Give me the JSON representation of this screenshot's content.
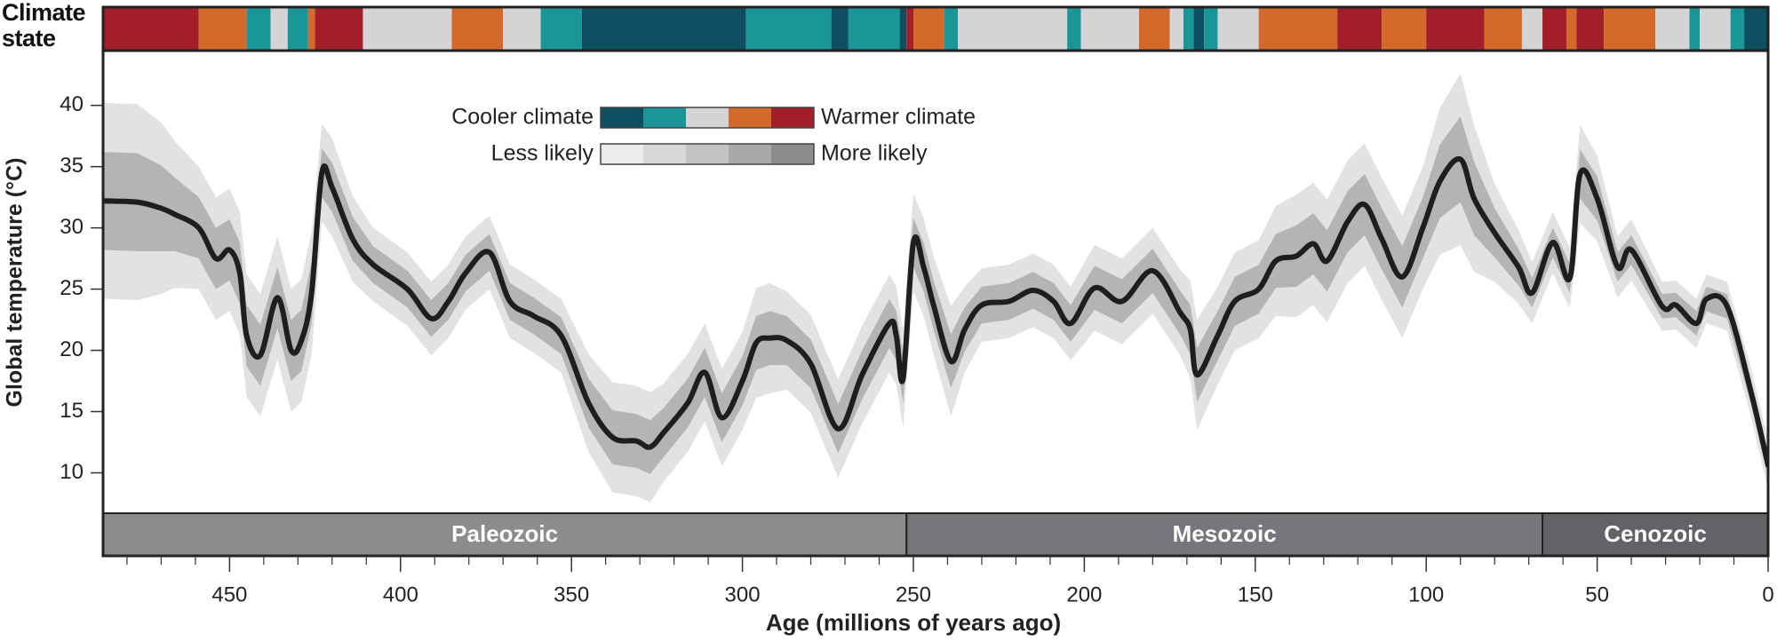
{
  "chart_data": {
    "type": "line",
    "ylabel": "Global temperature (°C)",
    "xlabel": "Age (millions of years ago)",
    "xlim": [
      487,
      0
    ],
    "ylim": [
      6.7,
      44.4
    ],
    "xticks": [
      450,
      400,
      350,
      300,
      250,
      200,
      150,
      100,
      50,
      0
    ],
    "xminorticks": [
      480,
      470,
      460,
      440,
      430,
      420,
      410,
      390,
      380,
      370,
      360,
      340,
      330,
      320,
      310,
      290,
      280,
      270,
      260,
      240,
      230,
      220,
      210,
      190,
      180,
      170,
      160,
      140,
      130,
      120,
      110,
      90,
      80,
      70,
      60,
      40,
      30,
      20,
      10
    ],
    "yticks": [
      10,
      15,
      20,
      25,
      30,
      35,
      40
    ],
    "x": [
      487,
      477,
      470,
      466,
      459,
      454,
      450,
      447,
      445,
      441,
      436,
      432,
      429,
      426,
      423,
      420,
      414,
      408,
      398,
      391,
      386,
      381,
      374,
      368,
      361,
      353,
      345,
      338,
      331,
      327,
      323,
      316,
      311,
      306,
      300,
      296,
      292,
      287,
      280,
      272,
      265,
      257,
      255,
      253,
      250,
      247,
      244,
      239,
      235,
      230,
      222,
      215,
      209,
      204,
      197,
      189,
      180,
      172,
      169,
      167,
      161,
      156,
      149,
      144,
      138,
      133,
      129,
      123,
      118,
      113,
      107,
      101,
      96,
      90,
      86,
      80,
      73,
      69,
      63,
      58,
      55,
      50,
      44,
      40,
      31,
      27,
      21,
      18,
      12,
      5,
      0
    ],
    "series": [
      {
        "color": "#1e1e1e",
        "values": [
          32.2,
          32.1,
          31.6,
          31.1,
          30,
          27.5,
          28.2,
          26.3,
          21.2,
          19.6,
          24.3,
          20,
          20.8,
          24.7,
          34.5,
          33.3,
          29.1,
          27,
          25,
          22.6,
          24,
          26.3,
          28,
          24,
          22.8,
          21.2,
          15.7,
          12.9,
          12.6,
          12.1,
          13.3,
          15.7,
          18.2,
          14.5,
          17.5,
          20.6,
          21,
          20.8,
          18.9,
          13.6,
          18,
          22.2,
          21.2,
          17.7,
          28.8,
          26.8,
          23.6,
          19.1,
          21.7,
          23.7,
          24,
          24.9,
          24,
          22.2,
          25.1,
          24,
          26.5,
          23.1,
          21.7,
          18,
          21.2,
          24,
          25,
          27.3,
          27.7,
          28.7,
          27.3,
          30.5,
          31.9,
          29.1,
          26,
          30,
          33.8,
          35.6,
          32.4,
          29.6,
          26.8,
          24.7,
          28.8,
          25.9,
          34.4,
          32.4,
          26.8,
          28.2,
          23.6,
          23.7,
          22.2,
          24.2,
          23.6,
          16.6,
          10.6
        ]
      }
    ],
    "bands": [
      {
        "color": "#e2e2e2",
        "halfwidth": [
          8,
          8,
          7,
          6,
          5,
          5,
          5,
          5,
          5,
          5,
          5,
          5,
          5,
          5,
          4,
          4,
          3.5,
          3,
          3,
          3,
          3,
          3,
          3,
          3,
          3,
          3,
          4,
          4.5,
          4.5,
          4.5,
          4,
          4,
          4,
          4,
          4,
          4.5,
          4.5,
          4,
          4,
          4,
          4,
          4,
          4,
          4,
          4,
          4,
          4,
          4.5,
          3.5,
          3,
          3,
          3,
          3,
          3,
          3.5,
          3.5,
          3.5,
          3.5,
          4,
          4.5,
          4,
          4,
          4,
          4.5,
          5,
          5,
          5,
          5,
          5,
          5,
          5,
          5,
          6,
          7,
          6,
          4,
          3,
          2.5,
          2.5,
          2.5,
          4,
          3.5,
          2.5,
          2.5,
          2,
          2,
          2,
          2,
          2,
          2,
          2
        ]
      },
      {
        "color": "#b4b4b6",
        "halfwidth": [
          4,
          4,
          3.5,
          3,
          2.5,
          2.5,
          2.5,
          2.5,
          2.5,
          2.5,
          2.5,
          2.5,
          2.5,
          2.5,
          2,
          2,
          1.8,
          1.5,
          1.5,
          1.5,
          1.5,
          1.5,
          1.5,
          1.5,
          1.5,
          1.5,
          2,
          2.2,
          2.2,
          2.2,
          2,
          2,
          2,
          2,
          2,
          2.2,
          2.2,
          2,
          2,
          2,
          2,
          2,
          2,
          2,
          2,
          2,
          2,
          2.2,
          1.8,
          1.5,
          1.5,
          1.5,
          1.5,
          1.5,
          1.8,
          1.8,
          1.8,
          1.8,
          2,
          2.2,
          2,
          2,
          2,
          2.2,
          2.5,
          2.5,
          2.5,
          2.5,
          2.5,
          2.5,
          2.5,
          2.5,
          3,
          3.5,
          3,
          2,
          1.5,
          1.2,
          1.2,
          1.2,
          2,
          1.8,
          1.2,
          1.2,
          1,
          1,
          1,
          1,
          1,
          1,
          1
        ]
      }
    ],
    "climate_state": {
      "label": "Climate state",
      "colors": [
        "#0f4e60",
        "#1b9698",
        "#d4d4d6",
        "#d3692b",
        "#a21f2a"
      ],
      "boundaries": [
        487,
        459,
        445,
        438,
        433,
        427,
        425,
        411,
        385,
        370,
        359,
        347,
        299,
        274,
        269,
        254,
        252,
        250,
        241,
        237,
        205,
        201,
        184,
        175,
        171,
        168,
        165,
        161,
        149,
        126,
        113,
        100,
        83,
        72,
        66,
        59,
        56,
        48,
        33,
        23,
        20,
        11,
        7,
        0
      ],
      "states": [
        4,
        3,
        1,
        2,
        1,
        3,
        4,
        2,
        3,
        2,
        1,
        0,
        1,
        0,
        1,
        0,
        4,
        3,
        1,
        2,
        1,
        2,
        3,
        2,
        1,
        0,
        1,
        2,
        3,
        4,
        3,
        4,
        3,
        2,
        4,
        3,
        4,
        3,
        2,
        1,
        2,
        1,
        0
      ]
    },
    "legend": {
      "cool_label": "Cooler climate",
      "warm_label": "Warmer climate",
      "less_label": "Less likely",
      "more_label": "More likely",
      "likelihood_colors": [
        "#ececec",
        "#d8d8d9",
        "#c3c3c4",
        "#a9a9ab",
        "#8d8d8f"
      ]
    },
    "eras": [
      {
        "name": "Paleozoic",
        "start": 487,
        "end": 252,
        "color": "#8c8c8f"
      },
      {
        "name": "Mesozoic",
        "start": 252,
        "end": 66,
        "color": "#77777b"
      },
      {
        "name": "Cenozoic",
        "start": 66,
        "end": 0,
        "color": "#636367"
      }
    ]
  }
}
